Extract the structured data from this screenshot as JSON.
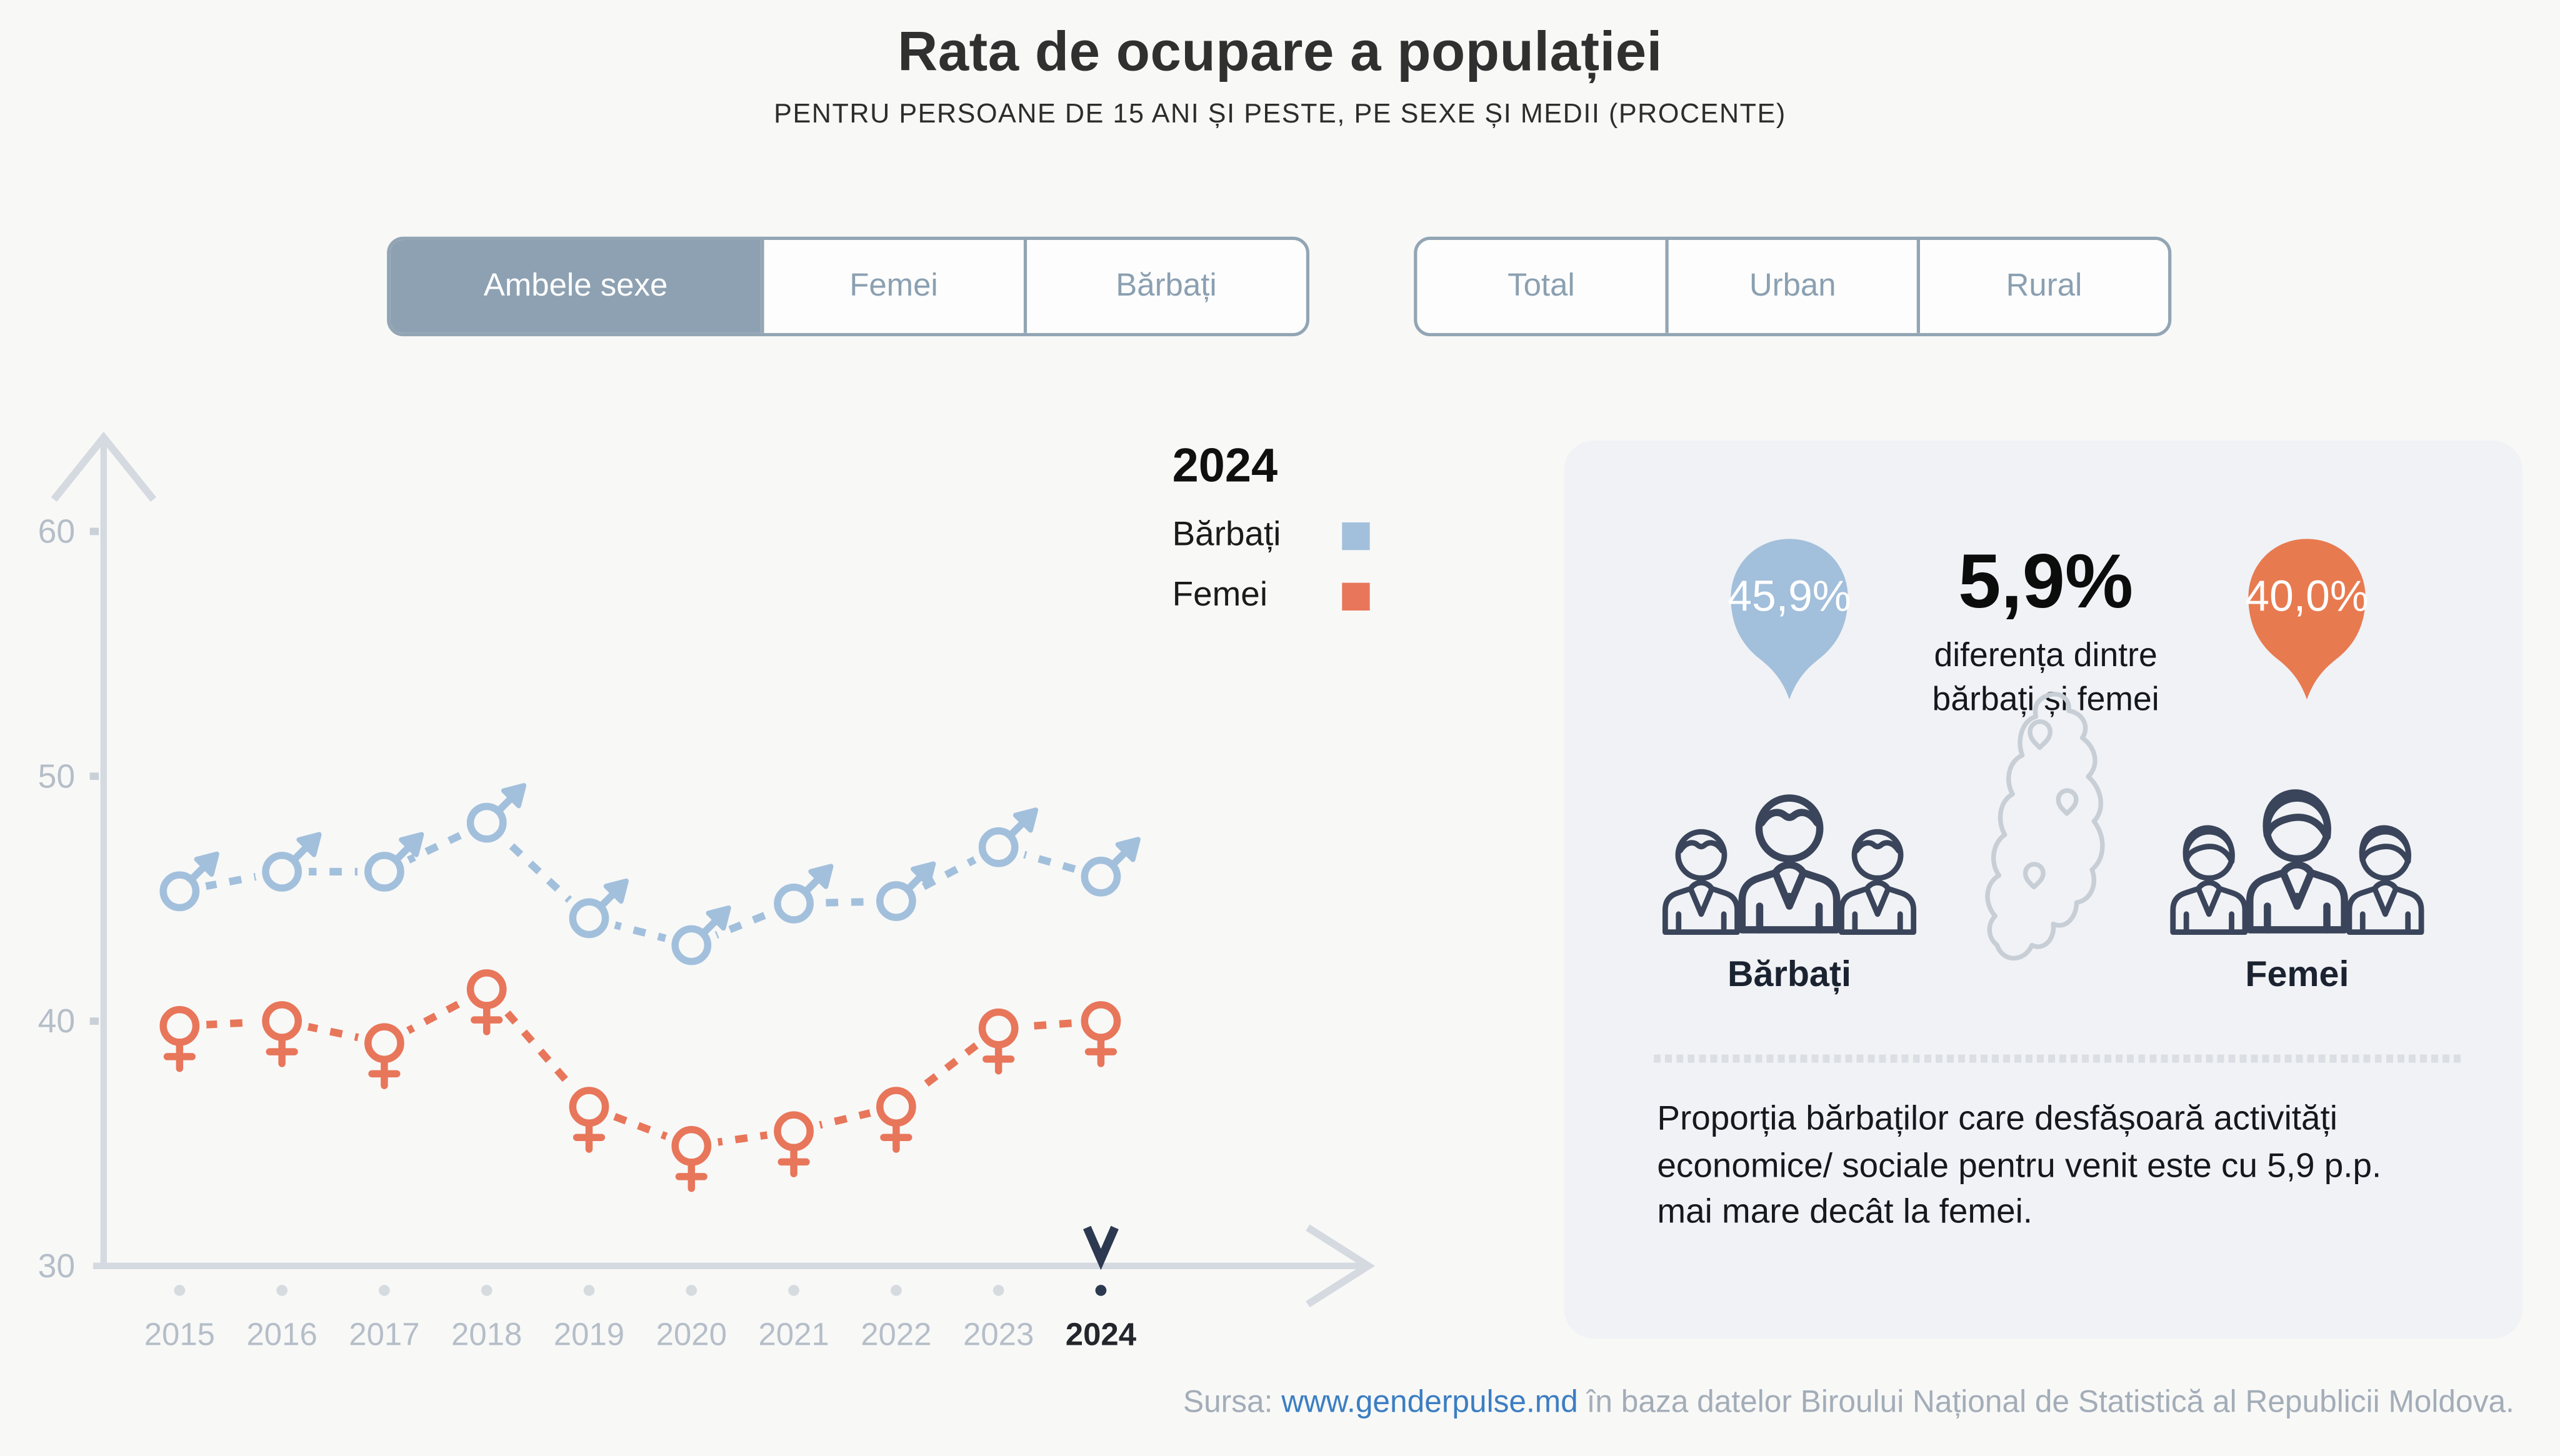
{
  "header": {
    "title": "Rata de ocupare a populației",
    "subtitle": "PENTRU PERSOANE DE 15 ANI ȘI PESTE, PE SEXE ȘI MEDII (PROCENTE)"
  },
  "filters": {
    "sex": {
      "options": [
        {
          "label": "Ambele sexe",
          "active": true
        },
        {
          "label": "Femei",
          "active": false
        },
        {
          "label": "Bărbați",
          "active": false
        }
      ]
    },
    "medium": {
      "options": [
        {
          "label": "Total",
          "active": false
        },
        {
          "label": "Urban",
          "active": false
        },
        {
          "label": "Rural",
          "active": false
        }
      ]
    }
  },
  "legend": {
    "year": "2024",
    "items": [
      {
        "label": "Bărbați",
        "color": "#a2c0dc"
      },
      {
        "label": "Femei",
        "color": "#e8765a"
      }
    ]
  },
  "chart_data": {
    "type": "line",
    "title": "Rata de ocupare a populației, 15 ani și peste, pe sexe (procente)",
    "x": [
      2015,
      2016,
      2017,
      2018,
      2019,
      2020,
      2021,
      2022,
      2023,
      2024
    ],
    "series": [
      {
        "name": "Bărbați",
        "color": "#a2c0dc",
        "marker": "male",
        "values": [
          45.3,
          46.1,
          46.1,
          48.1,
          44.2,
          43.1,
          44.8,
          44.9,
          47.1,
          45.9
        ]
      },
      {
        "name": "Femei",
        "color": "#e8765a",
        "marker": "female",
        "values": [
          39.8,
          40.0,
          39.1,
          41.3,
          36.5,
          34.9,
          35.5,
          36.5,
          39.7,
          40.0
        ]
      }
    ],
    "ylim": [
      30,
      62
    ],
    "yticks": [
      60,
      50,
      40,
      30
    ],
    "grid": false,
    "line_style": "dashed",
    "legend_position": "top-right",
    "highlight_year": 2024,
    "highlight_color": "#2c3950",
    "axis_color": "#d5dae0",
    "tick_label_color": "#b5bec8"
  },
  "panel": {
    "male_pin": {
      "value": "45,9%",
      "color": "#a2bfdb"
    },
    "female_pin": {
      "value": "40,0%",
      "color": "#e87a50"
    },
    "difference": {
      "value": "5,9%",
      "caption_line1": "diferența dintre",
      "caption_line2": "bărbați și femei"
    },
    "male_group_label": "Bărbați",
    "female_group_label": "Femei",
    "note": "Proporția bărbaților care desfășoară activități economice/ sociale pentru venit este cu 5,9 p.p. mai mare decât la femei."
  },
  "footer": {
    "source_prefix": "Sursa: ",
    "source_link": "www.genderpulse.md",
    "source_suffix": " în baza datelor Biroului Național de Statistică al Republicii Moldova."
  }
}
